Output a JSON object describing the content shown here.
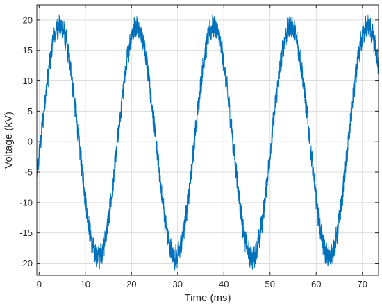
{
  "chart_data": {
    "type": "line",
    "title": "",
    "xlabel": "Time (ms)",
    "ylabel": "Voltage (kV)",
    "xlim": [
      -0.5,
      73.5
    ],
    "ylim": [
      -22,
      22.5
    ],
    "xticks": [
      0,
      10,
      20,
      30,
      40,
      50,
      60,
      70
    ],
    "yticks": [
      -20,
      -15,
      -10,
      -5,
      0,
      5,
      10,
      15,
      20
    ],
    "grid": true,
    "legend": "none",
    "series": [
      {
        "name": "",
        "color": "#0072BD",
        "waveform": {
          "kind": "noisy-sine",
          "amplitude_kv": 19,
          "frequency_hz": 60,
          "phase_offset_ms": 0.3,
          "noise_amplitude_kv": 2.0,
          "t_start_ms": -0.5,
          "t_end_ms": 73.5
        }
      }
    ]
  }
}
